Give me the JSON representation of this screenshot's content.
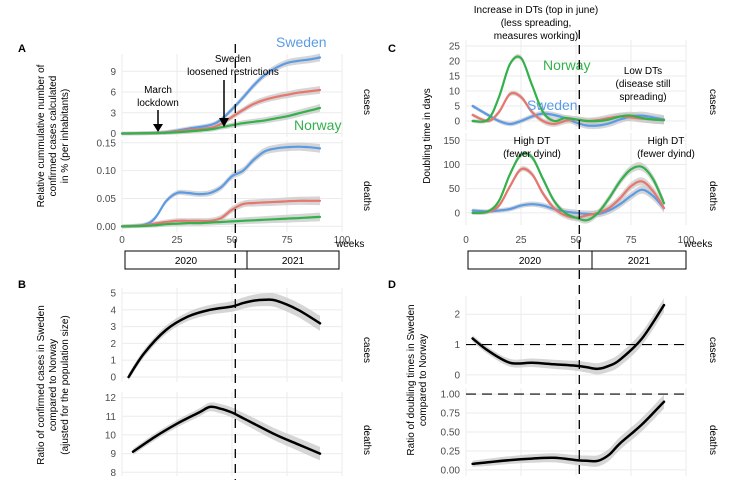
{
  "colors": {
    "Sweden": "#5b9be6",
    "Norway": "#33b14a",
    "Ratio": "#e8766d",
    "ratio_line": "#000000",
    "band": "#c8c8c8",
    "grid": "#ebebeb"
  },
  "time_axis": {
    "ticks": [
      "0",
      "25",
      "50",
      "75",
      "100"
    ],
    "label": "weeks",
    "years": [
      "2020",
      "2021"
    ]
  },
  "panel_A": {
    "letter": "A",
    "ylabel": [
      "Relative cummulative number of",
      "confirmed cases calculated",
      "in % (per inhabitants)"
    ],
    "strips": [
      "cases",
      "deaths"
    ],
    "cases_ticks": [
      "0",
      "3",
      "6",
      "9"
    ],
    "deaths_ticks": [
      "0.00",
      "0.05",
      "0.10",
      "0.15"
    ],
    "annotations": {
      "march": [
        "March",
        "lockdown"
      ],
      "sweden": [
        "Sweden",
        "loosened restrictions"
      ]
    },
    "series_labels": {
      "sweden": "Sweden",
      "norway": "Norway"
    }
  },
  "panel_B": {
    "letter": "B",
    "ylabel": [
      "Ratio of confirmed cases in Sweden",
      "compared to Norway",
      "(ajusted for the population size)"
    ],
    "strips": [
      "cases",
      "deaths"
    ],
    "cases_ticks": [
      "0",
      "1",
      "2",
      "3",
      "4",
      "5"
    ],
    "deaths_ticks": [
      "8",
      "9",
      "10",
      "11",
      "12"
    ]
  },
  "panel_C": {
    "letter": "C",
    "ylabel": "Doubling time in days",
    "strips": [
      "cases",
      "deaths"
    ],
    "cases_ticks": [
      "0",
      "5",
      "10",
      "15",
      "20",
      "25"
    ],
    "deaths_ticks": [
      "0",
      "50",
      "100",
      "150"
    ],
    "annotations": {
      "top": [
        "Increase in DTs (top in june)",
        "(less spreading,",
        "measures working)"
      ],
      "low": [
        "Low DTs",
        "(disease still",
        "spreading)"
      ],
      "high1": [
        "High DT",
        "(fewer dyind)"
      ],
      "high2": [
        "High DT",
        "(fewer dyind)"
      ]
    },
    "series_labels": {
      "sweden": "Sweden",
      "norway": "Norway"
    }
  },
  "panel_D": {
    "letter": "D",
    "ylabel": [
      "Ratio of doubling times in Sweden",
      "compared to Norway"
    ],
    "strips": [
      "cases",
      "deaths"
    ],
    "cases_ticks": [
      "0",
      "1",
      "2"
    ],
    "deaths_ticks": [
      "0.00",
      "0.25",
      "0.50",
      "0.75",
      "1.00"
    ]
  },
  "chart_data": [
    {
      "type": "line",
      "title": "A - cases",
      "x": [
        0,
        10,
        20,
        30,
        40,
        45,
        50,
        55,
        60,
        65,
        70,
        75,
        80,
        85,
        90
      ],
      "series": [
        {
          "name": "Sweden",
          "values": [
            0,
            0.05,
            0.2,
            0.7,
            1.2,
            2.0,
            3.5,
            5.2,
            7.0,
            8.5,
            9.5,
            10.2,
            10.5,
            10.7,
            11.0
          ]
        },
        {
          "name": "",
          "values": [
            0,
            0.05,
            0.15,
            0.5,
            0.8,
            1.4,
            2.4,
            3.4,
            4.3,
            4.9,
            5.3,
            5.6,
            5.9,
            6.1,
            6.3
          ]
        },
        {
          "name": "Norway",
          "values": [
            0,
            0.03,
            0.1,
            0.3,
            0.6,
            0.9,
            1.2,
            1.5,
            1.7,
            1.9,
            2.2,
            2.5,
            2.9,
            3.3,
            3.7
          ]
        }
      ],
      "ylim": [
        -0.5,
        11.5
      ]
    },
    {
      "type": "line",
      "title": "A - deaths",
      "x": [
        0,
        10,
        15,
        20,
        25,
        30,
        35,
        40,
        45,
        50,
        55,
        60,
        65,
        70,
        75,
        80,
        85,
        90
      ],
      "series": [
        {
          "name": "Sweden",
          "values": [
            0,
            0.003,
            0.015,
            0.045,
            0.06,
            0.06,
            0.058,
            0.06,
            0.07,
            0.09,
            0.1,
            0.12,
            0.135,
            0.14,
            0.142,
            0.143,
            0.142,
            0.14
          ]
        },
        {
          "name": "",
          "values": [
            0,
            0.002,
            0.005,
            0.008,
            0.01,
            0.01,
            0.01,
            0.01,
            0.015,
            0.03,
            0.04,
            0.042,
            0.043,
            0.044,
            0.045,
            0.046,
            0.046,
            0.046
          ]
        },
        {
          "name": "Norway",
          "values": [
            0,
            0.001,
            0.002,
            0.004,
            0.005,
            0.006,
            0.006,
            0.007,
            0.008,
            0.009,
            0.01,
            0.011,
            0.012,
            0.013,
            0.014,
            0.015,
            0.016,
            0.017
          ]
        }
      ],
      "ylim": [
        -0.01,
        0.155
      ]
    },
    {
      "type": "line",
      "title": "B - cases",
      "x": [
        3,
        10,
        20,
        30,
        40,
        50,
        55,
        60,
        65,
        70,
        80,
        90
      ],
      "series": [
        {
          "name": "",
          "values": [
            0,
            1.4,
            2.8,
            3.6,
            4.0,
            4.2,
            4.4,
            4.55,
            4.6,
            4.55,
            4.0,
            3.2
          ]
        }
      ],
      "ylim": [
        -0.3,
        5.3
      ]
    },
    {
      "type": "line",
      "title": "B - deaths",
      "x": [
        5,
        15,
        25,
        35,
        40,
        45,
        50,
        55,
        60,
        70,
        80,
        90
      ],
      "series": [
        {
          "name": "",
          "values": [
            9.1,
            9.9,
            10.6,
            11.2,
            11.5,
            11.4,
            11.2,
            10.9,
            10.6,
            10.0,
            9.5,
            9.0
          ]
        }
      ],
      "ylim": [
        7.8,
        12.3
      ]
    },
    {
      "type": "line",
      "title": "C - cases",
      "x": [
        3,
        10,
        15,
        20,
        25,
        30,
        35,
        40,
        45,
        50,
        55,
        60,
        65,
        70,
        75,
        80,
        85,
        90
      ],
      "series": [
        {
          "name": "Sweden",
          "values": [
            5,
            2,
            0,
            -1,
            0,
            1.5,
            2.5,
            2.0,
            1.0,
            -0.5,
            -1.5,
            -1.5,
            -0.8,
            0.5,
            1.5,
            1.8,
            1.2,
            0.5
          ]
        },
        {
          "name": "",
          "values": [
            2,
            0,
            3,
            9,
            8,
            3,
            0,
            -1,
            0,
            0.5,
            0,
            0.3,
            1,
            1.5,
            1.2,
            0.8,
            0.5,
            0.3
          ]
        },
        {
          "name": "Norway",
          "values": [
            0,
            0.5,
            8,
            19,
            21,
            12,
            3,
            0,
            1,
            0.5,
            0,
            0,
            0.5,
            1.5,
            1.8,
            1.0,
            0.5,
            0.3
          ]
        }
      ],
      "ylim": [
        -3,
        27
      ]
    },
    {
      "type": "line",
      "title": "C - deaths",
      "x": [
        3,
        10,
        15,
        20,
        25,
        30,
        35,
        40,
        45,
        50,
        55,
        60,
        65,
        70,
        75,
        80,
        85,
        90
      ],
      "series": [
        {
          "name": "Sweden",
          "values": [
            5,
            3,
            5,
            8,
            15,
            18,
            15,
            8,
            3,
            0,
            -2,
            -2,
            5,
            18,
            35,
            48,
            35,
            10
          ]
        },
        {
          "name": "",
          "values": [
            0,
            2,
            15,
            55,
            90,
            80,
            40,
            10,
            -5,
            -10,
            -5,
            0,
            10,
            30,
            55,
            65,
            45,
            10
          ]
        },
        {
          "name": "Norway",
          "values": [
            0,
            3,
            25,
            80,
            120,
            115,
            70,
            25,
            0,
            -10,
            -15,
            0,
            30,
            65,
            90,
            95,
            70,
            20
          ]
        }
      ],
      "ylim": [
        -25,
        165
      ]
    },
    {
      "type": "line",
      "title": "D - cases",
      "x": [
        3,
        10,
        20,
        30,
        40,
        50,
        55,
        60,
        65,
        70,
        80,
        90
      ],
      "series": [
        {
          "name": "",
          "values": [
            1.2,
            0.8,
            0.4,
            0.4,
            0.35,
            0.3,
            0.25,
            0.2,
            0.3,
            0.5,
            1.2,
            2.3
          ]
        }
      ],
      "ylim": [
        -0.3,
        2.6
      ]
    },
    {
      "type": "line",
      "title": "D - deaths",
      "x": [
        3,
        10,
        20,
        30,
        40,
        50,
        55,
        60,
        65,
        70,
        80,
        90
      ],
      "series": [
        {
          "name": "",
          "values": [
            0.08,
            0.1,
            0.13,
            0.15,
            0.16,
            0.13,
            0.12,
            0.12,
            0.2,
            0.35,
            0.6,
            0.9
          ]
        }
      ],
      "ylim": [
        -0.08,
        1.08
      ]
    }
  ]
}
